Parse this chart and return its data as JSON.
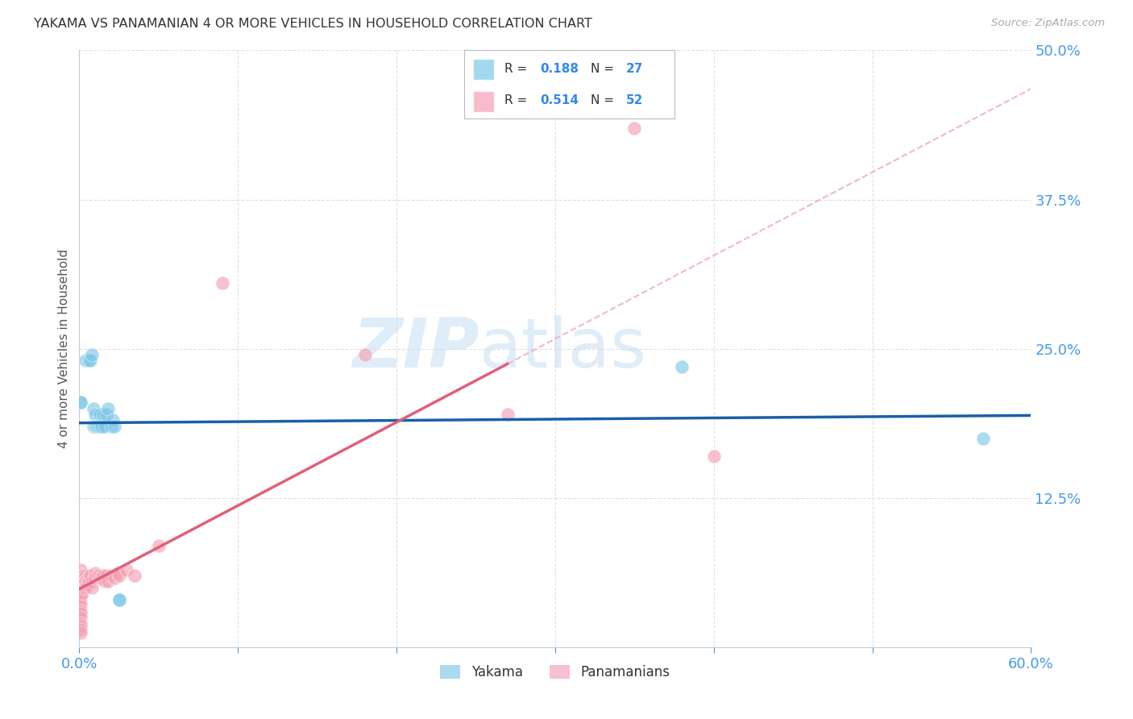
{
  "title": "YAKAMA VS PANAMANIAN 4 OR MORE VEHICLES IN HOUSEHOLD CORRELATION CHART",
  "source": "Source: ZipAtlas.com",
  "ylabel_label": "4 or more Vehicles in Household",
  "xlim": [
    0.0,
    0.6
  ],
  "ylim": [
    0.0,
    0.5
  ],
  "background_color": "#ffffff",
  "grid_color": "#e0e0e0",
  "yakama_color": "#7ec8e8",
  "panama_color": "#f4a0b5",
  "yakama_line_color": "#1a5fa8",
  "panama_line_color": "#e0607a",
  "dashed_line_color": "#f0b8c8",
  "watermark_color": "#ddeeff",
  "legend_R_yakama": "0.188",
  "legend_N_yakama": "27",
  "legend_R_panama": "0.514",
  "legend_N_panama": "52",
  "yakama_scatter": [
    [
      0.001,
      0.205
    ],
    [
      0.001,
      0.205
    ],
    [
      0.004,
      0.24
    ],
    [
      0.006,
      0.24
    ],
    [
      0.007,
      0.24
    ],
    [
      0.008,
      0.245
    ],
    [
      0.009,
      0.2
    ],
    [
      0.009,
      0.185
    ],
    [
      0.01,
      0.195
    ],
    [
      0.01,
      0.185
    ],
    [
      0.011,
      0.185
    ],
    [
      0.011,
      0.185
    ],
    [
      0.012,
      0.185
    ],
    [
      0.013,
      0.195
    ],
    [
      0.013,
      0.185
    ],
    [
      0.014,
      0.185
    ],
    [
      0.015,
      0.195
    ],
    [
      0.016,
      0.185
    ],
    [
      0.017,
      0.195
    ],
    [
      0.018,
      0.2
    ],
    [
      0.02,
      0.185
    ],
    [
      0.021,
      0.19
    ],
    [
      0.022,
      0.185
    ],
    [
      0.025,
      0.04
    ],
    [
      0.025,
      0.04
    ],
    [
      0.38,
      0.235
    ],
    [
      0.57,
      0.175
    ]
  ],
  "panama_scatter": [
    [
      0.001,
      0.065
    ],
    [
      0.001,
      0.06
    ],
    [
      0.001,
      0.055
    ],
    [
      0.001,
      0.05
    ],
    [
      0.001,
      0.045
    ],
    [
      0.001,
      0.042
    ],
    [
      0.001,
      0.038
    ],
    [
      0.001,
      0.035
    ],
    [
      0.001,
      0.03
    ],
    [
      0.001,
      0.028
    ],
    [
      0.001,
      0.025
    ],
    [
      0.001,
      0.02
    ],
    [
      0.001,
      0.018
    ],
    [
      0.001,
      0.015
    ],
    [
      0.001,
      0.012
    ],
    [
      0.002,
      0.06
    ],
    [
      0.002,
      0.055
    ],
    [
      0.002,
      0.05
    ],
    [
      0.002,
      0.045
    ],
    [
      0.003,
      0.058
    ],
    [
      0.003,
      0.052
    ],
    [
      0.004,
      0.06
    ],
    [
      0.004,
      0.055
    ],
    [
      0.004,
      0.05
    ],
    [
      0.005,
      0.058
    ],
    [
      0.005,
      0.052
    ],
    [
      0.006,
      0.058
    ],
    [
      0.006,
      0.055
    ],
    [
      0.007,
      0.06
    ],
    [
      0.008,
      0.055
    ],
    [
      0.008,
      0.05
    ],
    [
      0.01,
      0.062
    ],
    [
      0.01,
      0.058
    ],
    [
      0.012,
      0.06
    ],
    [
      0.013,
      0.058
    ],
    [
      0.014,
      0.058
    ],
    [
      0.015,
      0.06
    ],
    [
      0.016,
      0.055
    ],
    [
      0.017,
      0.06
    ],
    [
      0.018,
      0.055
    ],
    [
      0.02,
      0.06
    ],
    [
      0.022,
      0.058
    ],
    [
      0.024,
      0.062
    ],
    [
      0.025,
      0.06
    ],
    [
      0.03,
      0.065
    ],
    [
      0.035,
      0.06
    ],
    [
      0.05,
      0.085
    ],
    [
      0.09,
      0.305
    ],
    [
      0.18,
      0.245
    ],
    [
      0.27,
      0.195
    ],
    [
      0.35,
      0.435
    ],
    [
      0.4,
      0.16
    ]
  ]
}
